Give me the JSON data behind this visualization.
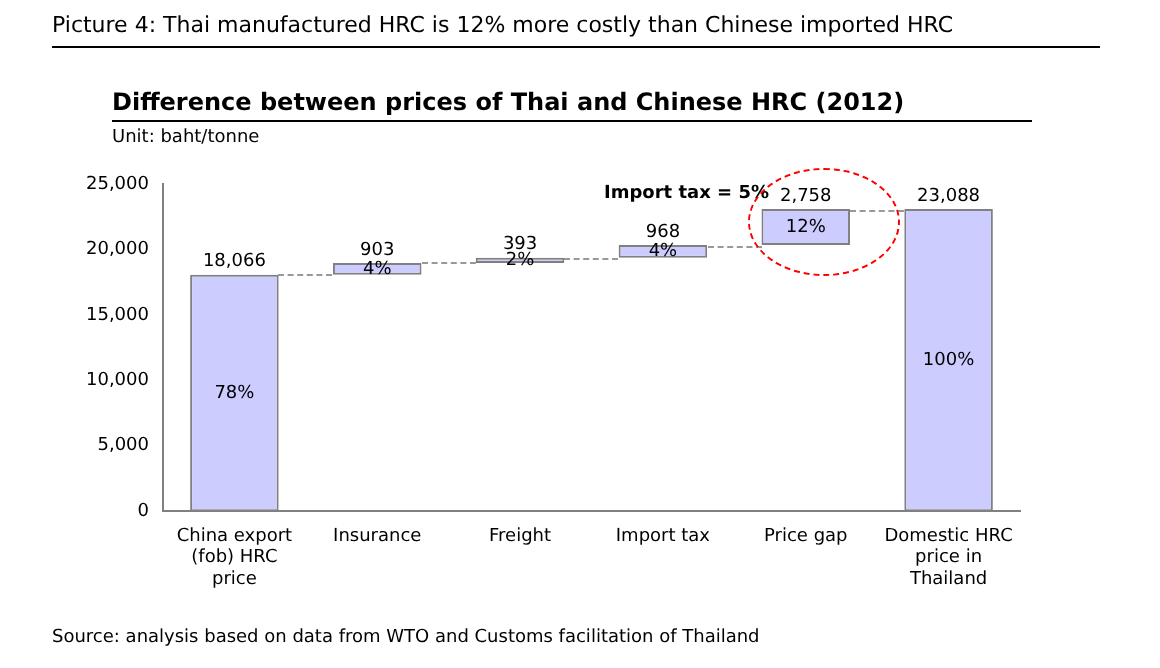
{
  "chart_data": {
    "type": "bar",
    "title": "Picture 4: Thai manufactured HRC is 12% more costly than Chinese imported HRC",
    "subtitle": "Difference between prices of Thai and Chinese HRC (2012)",
    "ylabel": "Unit: baht/tonne",
    "categories": [
      "China export (fob) HRC price",
      "Insurance",
      "Freight",
      "Import tax",
      "Price gap",
      "Domestic HRC price in Thailand"
    ],
    "values": [
      18066,
      903,
      393,
      968,
      2758,
      23088
    ],
    "base": [
      0,
      18066,
      18969,
      19362,
      20330,
      0
    ],
    "value_labels": [
      "18,066",
      "903",
      "393",
      "968",
      "2,758",
      "23,088"
    ],
    "color": "#ccccff",
    "ylim": [
      0,
      25000
    ],
    "yticks": [
      {
        "value": 0,
        "label": "0"
      },
      {
        "value": 5000,
        "label": "5,000"
      },
      {
        "value": 10000,
        "label": "10,000"
      },
      {
        "value": 15000,
        "label": "15,000"
      },
      {
        "value": 20000,
        "label": "20,000"
      },
      {
        "value": 25000,
        "label": "25,000"
      }
    ],
    "grid": false,
    "legend": false,
    "annotations": [
      "78%",
      "4%",
      "2%",
      "4%",
      "12%",
      "100%",
      "Import tax = 5%",
      "Source: analysis based on data from WTO and Customs facilitation of Thailand"
    ]
  }
}
